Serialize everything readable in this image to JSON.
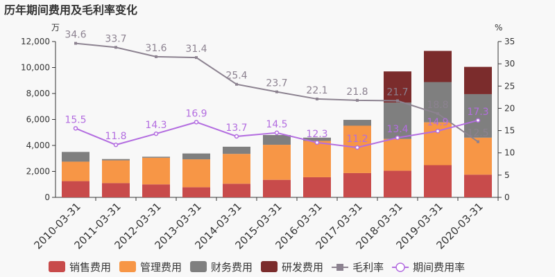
{
  "chart_data": {
    "type": "bar",
    "title": "历年期间费用及毛利率变化",
    "y_left_unit": "万",
    "y_right_unit": "%",
    "y_left_lim": [
      0,
      12000
    ],
    "y_left_ticks": [
      "0",
      "2,000",
      "4,000",
      "6,000",
      "8,000",
      "10,000",
      "12,000"
    ],
    "y_right_lim": [
      0,
      35
    ],
    "y_right_ticks": [
      "0",
      "5",
      "10",
      "15",
      "20",
      "25",
      "30",
      "35"
    ],
    "categories": [
      "2010-03-31",
      "2011-03-31",
      "2012-03-31",
      "2013-03-31",
      "2014-03-31",
      "2015-03-31",
      "2016-03-31",
      "2017-03-31",
      "2018-03-31",
      "2019-03-31",
      "2020-03-31"
    ],
    "bar_series": [
      {
        "name": "销售费用",
        "color": "#c84b4b",
        "values": [
          1250,
          1100,
          1000,
          780,
          1050,
          1350,
          1550,
          1870,
          2050,
          2480,
          1750
        ]
      },
      {
        "name": "管理费用",
        "color": "#f79646",
        "values": [
          1500,
          1750,
          2050,
          2150,
          2300,
          2700,
          2800,
          3650,
          2450,
          3300,
          2850
        ]
      },
      {
        "name": "财务费用",
        "color": "#7f7f7f",
        "values": [
          750,
          100,
          80,
          450,
          550,
          750,
          250,
          450,
          2800,
          3100,
          3350
        ]
      },
      {
        "name": "研发费用",
        "color": "#7b2c2c",
        "values": [
          0,
          0,
          0,
          0,
          0,
          0,
          0,
          0,
          2400,
          2400,
          2100
        ]
      }
    ],
    "line_series": [
      {
        "name": "毛利率",
        "color": "#8c8290",
        "values": [
          34.6,
          33.7,
          31.6,
          31.4,
          25.4,
          23.7,
          22.1,
          21.8,
          21.7,
          18.8,
          12.5
        ],
        "labels": [
          "34.6",
          "33.7",
          "31.6",
          "31.4",
          "25.4",
          "23.7",
          "22.1",
          "21.8",
          "21.7",
          "18.8",
          "12.5"
        ]
      },
      {
        "name": "期间费用率",
        "color": "#b36de0",
        "values": [
          15.5,
          11.8,
          14.3,
          16.9,
          13.7,
          14.5,
          12.3,
          11.2,
          13.4,
          14.9,
          17.3
        ],
        "labels": [
          "15.5",
          "11.8",
          "14.3",
          "16.9",
          "13.7",
          "14.5",
          "12.3",
          "11.2",
          "13.4",
          "14.9",
          "17.3"
        ]
      }
    ],
    "grid": false,
    "legend_position": "bottom"
  }
}
